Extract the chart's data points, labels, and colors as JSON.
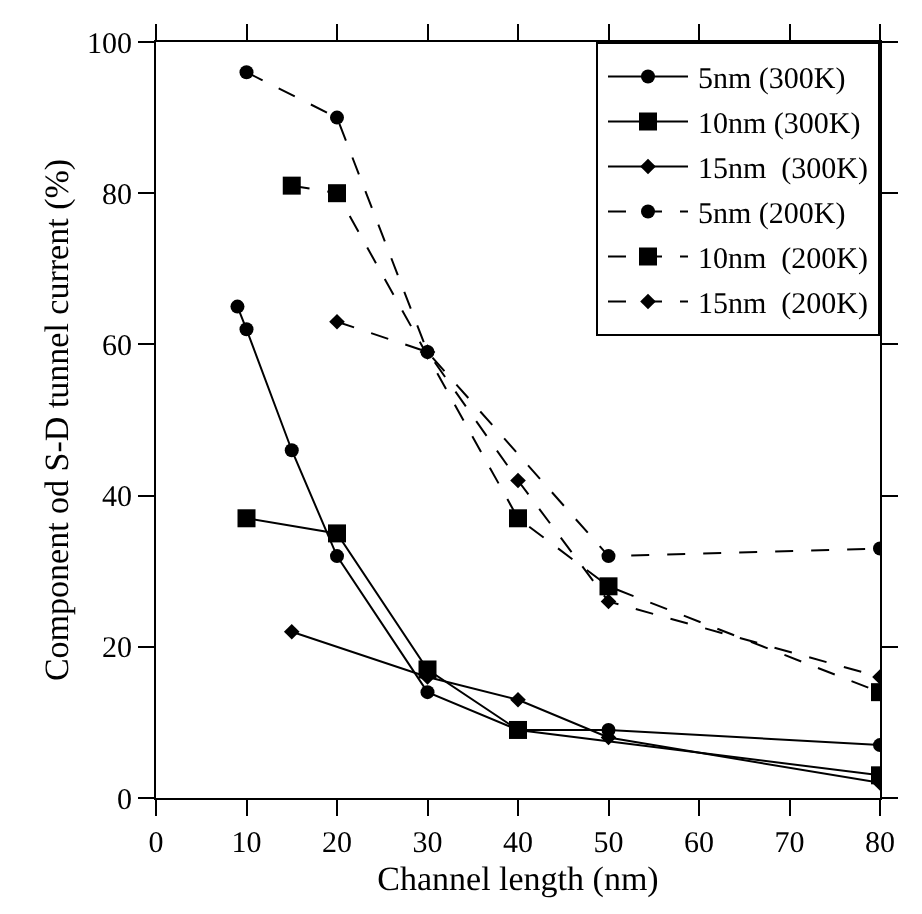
{
  "chart_data": {
    "type": "line",
    "xlabel": "Channel length (nm)",
    "ylabel": "Component od S-D tunnel current (%)",
    "xlim": [
      0,
      80
    ],
    "xticks": [
      0,
      10,
      20,
      30,
      40,
      50,
      60,
      70,
      80
    ],
    "ylim": [
      0,
      100
    ],
    "yticks": [
      0,
      20,
      40,
      60,
      80,
      100
    ],
    "legend": "top right",
    "series": [
      {
        "name": "5nm (300K)",
        "color": "#000000",
        "marker": "circle",
        "line_style": "solid",
        "x": [
          9,
          10,
          15,
          20,
          30,
          40,
          50,
          80
        ],
        "values": [
          65,
          62,
          46,
          32,
          14,
          9,
          9,
          7
        ]
      },
      {
        "name": "10nm (300K)",
        "color": "#000000",
        "marker": "square",
        "line_style": "solid",
        "x": [
          10,
          20,
          30,
          40,
          80
        ],
        "values": [
          37,
          35,
          17,
          9,
          3
        ]
      },
      {
        "name": "15nm  (300K)",
        "color": "#000000",
        "marker": "diamond",
        "line_style": "solid",
        "x": [
          15,
          30,
          40,
          50,
          80
        ],
        "values": [
          22,
          16,
          13,
          8,
          2
        ]
      },
      {
        "name": "5nm (200K)",
        "color": "#000000",
        "marker": "circle",
        "line_style": "dashed",
        "x": [
          10,
          20,
          30,
          50,
          80
        ],
        "values": [
          96,
          90,
          59,
          32,
          33
        ]
      },
      {
        "name": "10nm  (200K)",
        "color": "#000000",
        "marker": "square",
        "line_style": "dashed",
        "x": [
          15,
          20,
          40,
          50,
          80
        ],
        "values": [
          81,
          80,
          37,
          28,
          14
        ]
      },
      {
        "name": "15nm  (200K)",
        "color": "#000000",
        "marker": "diamond",
        "line_style": "dashed",
        "x": [
          20,
          30,
          40,
          50,
          80
        ],
        "values": [
          63,
          59,
          42,
          26,
          16
        ]
      }
    ]
  }
}
